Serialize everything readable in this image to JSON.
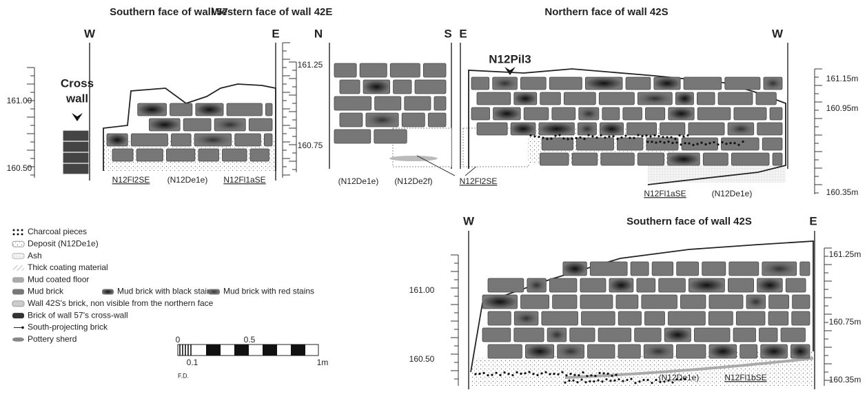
{
  "panels": [
    {
      "title": "Southern face of wall 57",
      "directions": [
        "W",
        "E"
      ],
      "elevations": [
        "161.00",
        "160.50"
      ],
      "annotation": [
        "Cross",
        "wall"
      ],
      "labels": [
        "N12Fl2SE",
        "(N12De1e)",
        "N12Fl1aSE"
      ]
    },
    {
      "title": "Western face of wall 42E",
      "directions": [
        "N",
        "S"
      ],
      "elevations": [
        "161.25",
        "160.75"
      ],
      "labels": [
        "(N12De1e)",
        "(N12De2f)",
        "N12Fl2SE"
      ]
    },
    {
      "title": "Northern face of wall 42S",
      "directions": [
        "E",
        "W"
      ],
      "elevations": [
        "161.15m",
        "160.95m",
        "160.35m"
      ],
      "annotation": "N12Pil3",
      "labels": [
        "N12Fl1aSE",
        "(N12De1e)"
      ]
    },
    {
      "title": "Southern face of wall 42S",
      "directions": [
        "W",
        "E"
      ],
      "elevations": [
        "161.00",
        "160.50",
        "161.25m",
        "160.75m",
        "160.35m"
      ],
      "labels": [
        "(N12De1e)",
        "N12Fl1bSE"
      ]
    }
  ],
  "legend": [
    "Charcoal pieces",
    "Deposit (N12De1e)",
    "Ash",
    "Thick coating material",
    "Mud coated floor",
    "Mud brick",
    "Mud brick with black stains",
    "Mud brick with red stains",
    "Wall 42S's brick, non visible from the northern face",
    "Brick of wall 57's cross-wall",
    "South-projecting brick",
    "Pottery sherd"
  ],
  "scale": {
    "labels": [
      "0",
      "0.5",
      "0.1",
      "1m"
    ],
    "note": "F.D."
  }
}
